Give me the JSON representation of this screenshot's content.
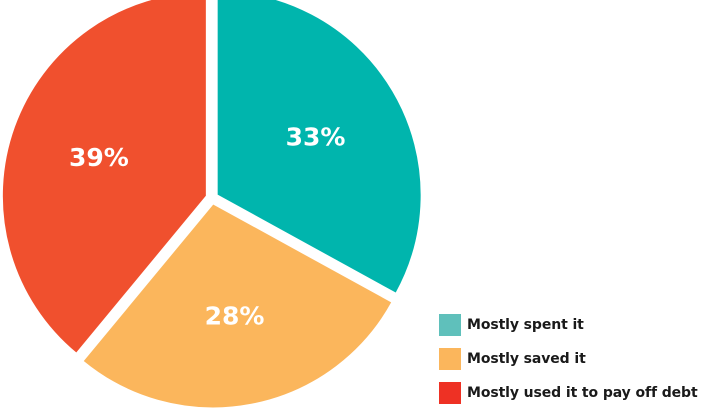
{
  "chart_data": {
    "type": "pie",
    "title": "",
    "slices": [
      {
        "label": "Mostly spent it",
        "value": 33,
        "display": "33%",
        "color": "#00b5ad",
        "swatch": "#5fc0bb"
      },
      {
        "label": "Mostly saved it",
        "value": 28,
        "display": "28%",
        "color": "#fbb65c",
        "swatch": "#fbb65c"
      },
      {
        "label": "Mostly used it to pay off debt",
        "value": 39,
        "display": "39%",
        "color": "#f0502e",
        "swatch": "#ee3124"
      }
    ],
    "legend_position": "bottom-right"
  }
}
